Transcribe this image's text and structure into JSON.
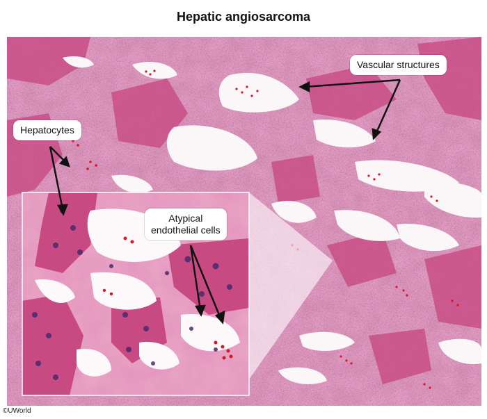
{
  "title": "Hepatic angiosarcoma",
  "image": {
    "description_icon": "histology-micrograph",
    "colors": {
      "stroma": "#d98fb2",
      "hepatocyte": "#c9457d",
      "lumen": "#fbf7f8",
      "nucleus": "#4a2a6a",
      "rbc": "#d4182a"
    }
  },
  "labels": {
    "vascular": "Vascular structures",
    "hepatocytes": "Hepatocytes",
    "atypical_line1": "Atypical",
    "atypical_line2": "endothelial cells"
  },
  "copyright": "©UWorld"
}
